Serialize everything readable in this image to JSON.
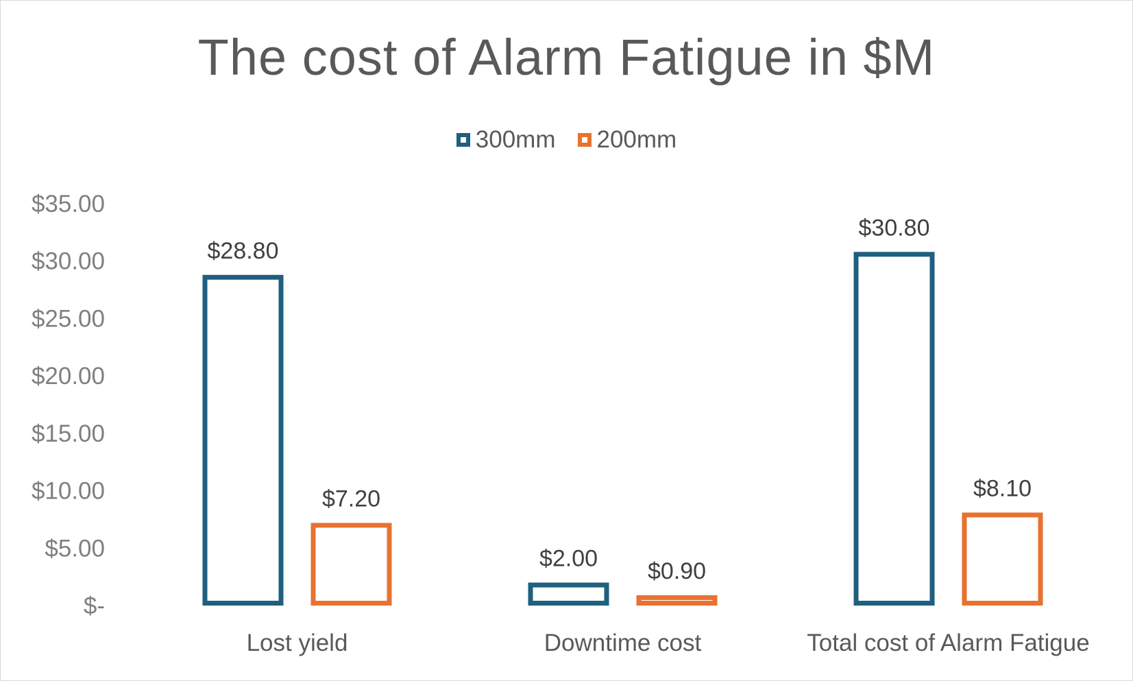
{
  "chart_data": {
    "type": "bar",
    "title": "The cost of Alarm Fatigue in $M",
    "xlabel": "",
    "ylabel": "",
    "categories": [
      "Lost yield",
      "Downtime cost",
      "Total cost of Alarm Fatigue"
    ],
    "series": [
      {
        "name": "300mm",
        "color": "#1f5f7f",
        "values": [
          28.8,
          2.0,
          30.8
        ],
        "data_labels": [
          "$28.80",
          "$2.00",
          "$30.80"
        ]
      },
      {
        "name": "200mm",
        "color": "#e8722f",
        "values": [
          7.2,
          0.9,
          8.1
        ],
        "data_labels": [
          "$7.20",
          "$0.90",
          "$8.10"
        ]
      }
    ],
    "ylim": [
      0,
      35
    ],
    "y_ticks": [
      0,
      5,
      10,
      15,
      20,
      25,
      30,
      35
    ],
    "y_tick_labels": [
      "$-",
      "$5.00",
      "$10.00",
      "$15.00",
      "$20.00",
      "$25.00",
      "$30.00",
      "$35.00"
    ],
    "grid": false,
    "legend_position": "top-center",
    "bar_style": "outline"
  }
}
